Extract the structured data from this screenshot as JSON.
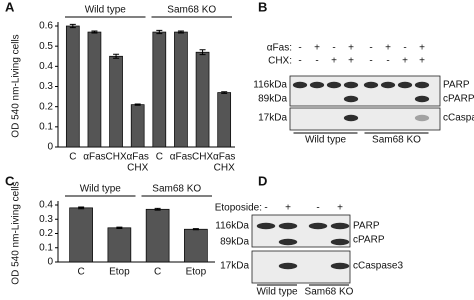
{
  "chart_data": [
    {
      "type": "bar",
      "panel": "A",
      "ylabel": "OD 540 nm-Living cells",
      "groups": [
        "Wild type",
        "Sam68 KO"
      ],
      "categories": [
        "C",
        "αFas",
        "CHX",
        [
          "αFas",
          "CHX"
        ],
        "C",
        "αFas",
        "CHX",
        [
          "αFas",
          "CHX"
        ]
      ],
      "values": [
        0.6,
        0.57,
        0.45,
        0.21,
        0.57,
        0.57,
        0.47,
        0.27
      ],
      "errors": [
        0.008,
        0.005,
        0.01,
        0.003,
        0.008,
        0.005,
        0.012,
        0.004
      ],
      "color": "#555555",
      "ylim": [
        0,
        0.6
      ],
      "yticks": [
        0,
        0.1,
        0.2,
        0.3,
        0.4,
        0.5,
        0.6
      ]
    },
    {
      "type": "bar",
      "panel": "C",
      "ylabel": "OD 540 nm-Living cells",
      "groups": [
        "Wild type",
        "Sam68 KO"
      ],
      "categories": [
        "C",
        "Etop",
        "C",
        "Etop"
      ],
      "values": [
        0.38,
        0.24,
        0.37,
        0.23
      ],
      "errors": [
        0.006,
        0.005,
        0.006,
        0.004
      ],
      "color": "#555555",
      "ylim": [
        0,
        0.4
      ],
      "yticks": [
        0,
        0.1,
        0.2,
        0.3,
        0.4
      ]
    }
  ],
  "blots": [
    {
      "panel": "B",
      "conditions": [
        {
          "name": "αFas:",
          "signs": [
            "-",
            "+",
            "-",
            "+",
            "-",
            "+",
            "-",
            "+"
          ]
        },
        {
          "name": "CHX:",
          "signs": [
            "-",
            "-",
            "+",
            "+",
            "-",
            "-",
            "+",
            "+"
          ]
        }
      ],
      "markers": [
        "116kDa",
        "89kDa",
        "17kDa"
      ],
      "bands": [
        "PARP",
        "cPARP",
        "cCaspase3"
      ],
      "groups": [
        "Wild type",
        "Sam68 KO"
      ]
    },
    {
      "panel": "D",
      "conditions": [
        {
          "name": "Etoposide:",
          "signs": [
            "-",
            "+",
            "-",
            "+"
          ]
        }
      ],
      "markers": [
        "116kDa",
        "89kDa",
        "17kDa"
      ],
      "bands": [
        "PARP",
        "cPARP",
        "cCaspase3"
      ],
      "groups": [
        "Wild type",
        "Sam68 KO"
      ]
    }
  ]
}
